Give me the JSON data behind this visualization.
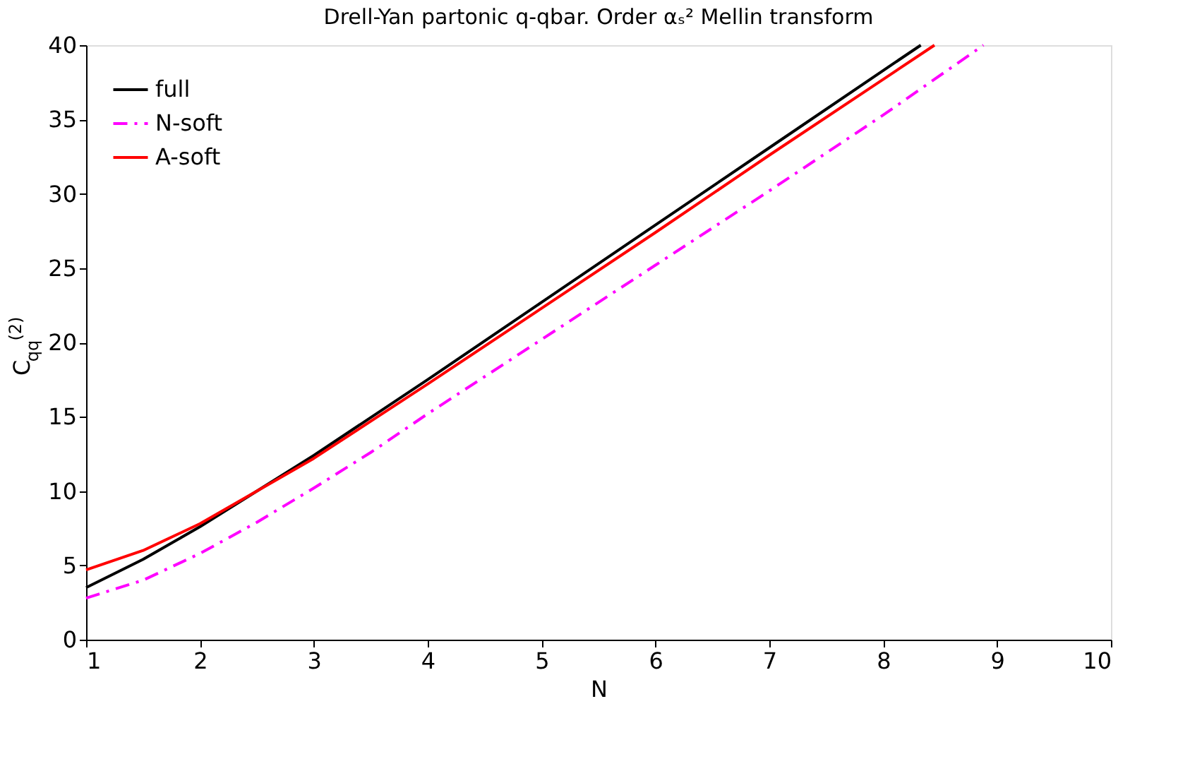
{
  "chart_data": {
    "type": "line",
    "title": "Drell-Yan partonic q-qbar.   Order αₛ²  Mellin transform",
    "xlabel": "N",
    "ylabel": "C$_{qq}$$^{(2)}$",
    "xlim": [
      1,
      10
    ],
    "xticks": [
      1,
      2,
      3,
      4,
      5,
      6,
      7,
      8,
      9,
      10
    ],
    "ylim": [
      0,
      40
    ],
    "yticks": [
      0,
      5,
      10,
      15,
      20,
      25,
      30,
      35,
      40
    ],
    "grid": false,
    "legend": "top left",
    "series": [
      {
        "name": "full",
        "color": "#000000",
        "line_style": "solid",
        "x": [
          1,
          1.5,
          2,
          2.5,
          3,
          4,
          5,
          6,
          7,
          8,
          8.33
        ],
        "values": [
          3.5,
          5.4,
          7.6,
          10.0,
          12.4,
          17.5,
          22.7,
          27.9,
          33.1,
          38.3,
          40
        ]
      },
      {
        "name": "N-soft",
        "color": "#ff00ff",
        "line_style": "dashed",
        "x": [
          1,
          1.5,
          2,
          2.5,
          3,
          3.5,
          4,
          5,
          6,
          7,
          8,
          8.88
        ],
        "values": [
          2.8,
          4.0,
          5.8,
          7.9,
          10.2,
          12.6,
          15.2,
          20.2,
          25.2,
          30.2,
          35.3,
          40
        ]
      },
      {
        "name": "A-soft",
        "color": "#ff0000",
        "line_style": "solid",
        "x": [
          1,
          1.5,
          2,
          2.5,
          3,
          4,
          5,
          6,
          7,
          8,
          8.45
        ],
        "values": [
          4.7,
          6.0,
          7.8,
          10.0,
          12.2,
          17.2,
          22.3,
          27.4,
          32.6,
          37.7,
          40
        ]
      }
    ]
  }
}
